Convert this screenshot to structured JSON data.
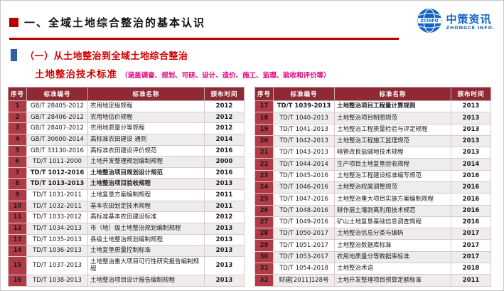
{
  "slide": {
    "title": "一、全域土地综合整治的基本认识",
    "section_title": "（一）从土地整治到全域土地综合整治",
    "subtitle": "土地整治技术标准",
    "subtitle_note": "（涵盖调查、规划、可研、设计、造价、施工、监理、验收和评价等）"
  },
  "logo": {
    "cn": "中策资讯",
    "en": "ZHONGCE INFO.",
    "badge": "ZCINFO"
  },
  "colors": {
    "accent_red": "#b50000",
    "section_blue": "#2f5fa5",
    "subtitle_red": "#d40000",
    "note_pink": "#e6007e",
    "table_header_bg": "#8f2a35",
    "index_column_bg": "#b03a46",
    "logo_blue": "#1565c0"
  },
  "table": {
    "headers": [
      "序号",
      "标准编号",
      "标准名称",
      "颁布时间"
    ],
    "left_rows": [
      {
        "no": "1",
        "code": "GB/T 28405-2012",
        "name": "农用地定级规程",
        "year": "2012"
      },
      {
        "no": "2",
        "code": "GB/T 28406-2012",
        "name": "农用地估价规程",
        "year": "2012"
      },
      {
        "no": "3",
        "code": "GB/T 28407-2012",
        "name": "农用地质量分等规程",
        "year": "2012"
      },
      {
        "no": "4",
        "code": "GB/T 30600-2014",
        "name": "高标准农田建设 通则",
        "year": "2014"
      },
      {
        "no": "5",
        "code": "GB/T 33130-2016",
        "name": "高标准农田建设评价规范",
        "year": "2016"
      },
      {
        "no": "6",
        "code": "TD/T 1011-2000",
        "name": "土地开发整理规划编制规程",
        "year": "2000"
      },
      {
        "no": "7",
        "code": "TD/T 1012-2016",
        "name": "土地整治项目规划设计规范",
        "year": "2016",
        "bold": true
      },
      {
        "no": "8",
        "code": "TD/T 1013-2013",
        "name": "土地整治项目验收规程",
        "year": "2013",
        "bold": true
      },
      {
        "no": "9",
        "code": "TD/T 1031-2011",
        "name": "土地复垦方案编制规程",
        "year": "2011"
      },
      {
        "no": "10",
        "code": "TD/T 1032-2011",
        "name": "基本农田划定技术规程",
        "year": "2011"
      },
      {
        "no": "11",
        "code": "TD/T 1033-2012",
        "name": "高标准基本农田建设标准",
        "year": "2012"
      },
      {
        "no": "12",
        "code": "TD/T 1034-2013",
        "name": "市（地）级土地整治规划编制规程",
        "year": "2013"
      },
      {
        "no": "13",
        "code": "TD/T 1035-2013",
        "name": "县级土地整治规划编制规程",
        "year": "2013"
      },
      {
        "no": "14",
        "code": "TD/T 1036-2013",
        "name": "土地复垦质量控制标准",
        "year": "2013"
      },
      {
        "no": "15",
        "code": "TD/T 1037-2013",
        "name": "土地整治重大项目可行性研究报告编制规程",
        "year": "2013"
      },
      {
        "no": "16",
        "code": "TD/T 1038-2013",
        "name": "土地整治项目设计报告编制规程",
        "year": "2013"
      }
    ],
    "right_rows": [
      {
        "no": "17",
        "code": "TD/T 1039-2013",
        "name": "土地整治项目工程量计算规则",
        "year": "2013",
        "bold": true
      },
      {
        "no": "18",
        "code": "TD/T 1040-2013",
        "name": "土地整治项目制图规范",
        "year": "2013"
      },
      {
        "no": "19",
        "code": "TD/T 1041-2013",
        "name": "土地整治工程质量检验与评定规程",
        "year": "2013"
      },
      {
        "no": "20",
        "code": "TD/T 1042-2013",
        "name": "土地整治工程施工监理规范",
        "year": "2013"
      },
      {
        "no": "21",
        "code": "TD/T 1043-2013",
        "name": "暗管改良盐碱地技术规程",
        "year": "2013"
      },
      {
        "no": "22",
        "code": "TD/T 1044-2014",
        "name": "生产项目土地复垦验收规程",
        "year": "2014"
      },
      {
        "no": "23",
        "code": "TD/T 1045-2016",
        "name": "土地整治工程建设标准编写规范",
        "year": "2016"
      },
      {
        "no": "24",
        "code": "TD/T 1046-2016",
        "name": "土地整治权属调整规范",
        "year": "2016"
      },
      {
        "no": "25",
        "code": "TD/T 1047-2016",
        "name": "土地整治重大项目实施方案编制规程",
        "year": "2016"
      },
      {
        "no": "26",
        "code": "TD/T 1048-2016",
        "name": "耕作层土壤剥离利用技术规范",
        "year": "2016"
      },
      {
        "no": "27",
        "code": "TD/T 1049-2016",
        "name": "矿山土地复垦基础信息调查规程",
        "year": "2016"
      },
      {
        "no": "28",
        "code": "TD/T 1050-2017",
        "name": "土地整治信息分类与编码",
        "year": "2017"
      },
      {
        "no": "29",
        "code": "TD/T 1051-2017",
        "name": "土地整治数据库标准",
        "year": "2017"
      },
      {
        "no": "30",
        "code": "TD/T 1053-2017",
        "name": "农用地质量分等数据库标准",
        "year": "2017"
      },
      {
        "no": "31",
        "code": "TD/T 1054-2018",
        "name": "土地整治术语",
        "year": "2018"
      },
      {
        "no": "32",
        "code": "财建[2011]128号",
        "name": "土地开发整理项目预算定额标准",
        "year": "2011"
      }
    ]
  }
}
